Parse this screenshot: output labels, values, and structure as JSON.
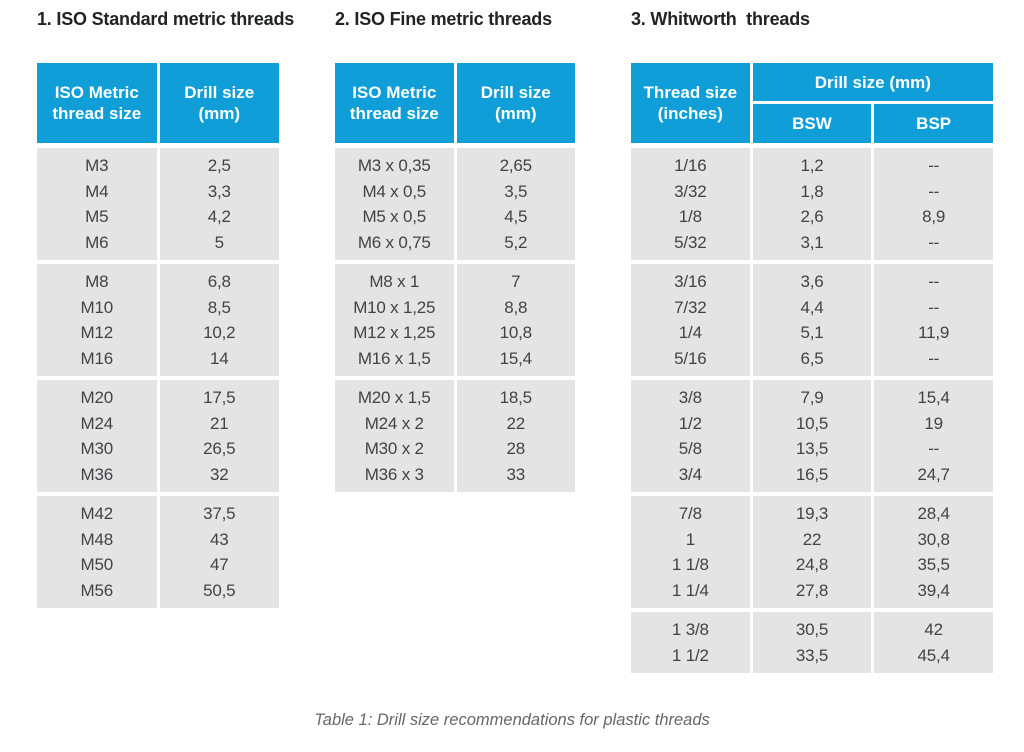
{
  "caption": "Table 1: Drill size recommendations for plastic threads",
  "colors": {
    "header_blue": "#0f9ed8",
    "body_gray": "#e4e4e4",
    "body_text": "#424345",
    "title_text": "#222324",
    "caption_text": "#64676b"
  },
  "tables": [
    {
      "id": "iso-standard-metric",
      "title": "1. ISO Standard metric threads",
      "header": {
        "columns": [
          {
            "lines": [
              "ISO Metric",
              "thread size"
            ]
          },
          {
            "lines": [
              "Drill size",
              "(mm)"
            ]
          }
        ]
      },
      "groups": [
        {
          "rows": [
            [
              "M3",
              "2,5"
            ],
            [
              "M4",
              "3,3"
            ],
            [
              "M5",
              "4,2"
            ],
            [
              "M6",
              "5"
            ]
          ]
        },
        {
          "rows": [
            [
              "M8",
              "6,8"
            ],
            [
              "M10",
              "8,5"
            ],
            [
              "M12",
              "10,2"
            ],
            [
              "M16",
              "14"
            ]
          ]
        },
        {
          "rows": [
            [
              "M20",
              "17,5"
            ],
            [
              "M24",
              "21"
            ],
            [
              "M30",
              "26,5"
            ],
            [
              "M36",
              "32"
            ]
          ]
        },
        {
          "rows": [
            [
              "M42",
              "37,5"
            ],
            [
              "M48",
              "43"
            ],
            [
              "M50",
              "47"
            ],
            [
              "M56",
              "50,5"
            ]
          ]
        }
      ]
    },
    {
      "id": "iso-fine-metric",
      "title": "2. ISO Fine metric threads",
      "header": {
        "columns": [
          {
            "lines": [
              "ISO Metric",
              "thread size"
            ]
          },
          {
            "lines": [
              "Drill size",
              "(mm)"
            ]
          }
        ]
      },
      "groups": [
        {
          "rows": [
            [
              "M3 x 0,35",
              "2,65"
            ],
            [
              "M4 x 0,5",
              "3,5"
            ],
            [
              "M5 x 0,5",
              "4,5"
            ],
            [
              "M6 x 0,75",
              "5,2"
            ]
          ]
        },
        {
          "rows": [
            [
              "M8 x 1",
              "7"
            ],
            [
              "M10 x 1,25",
              "8,8"
            ],
            [
              "M12 x 1,25",
              "10,8"
            ],
            [
              "M16 x 1,5",
              "15,4"
            ]
          ]
        },
        {
          "rows": [
            [
              "M20 x 1,5",
              "18,5"
            ],
            [
              "M24 x 2",
              "22"
            ],
            [
              "M30 x 2",
              "28"
            ],
            [
              "M36 x 3",
              "33"
            ]
          ]
        }
      ]
    },
    {
      "id": "whitworth",
      "title": "3. Whitworth  threads",
      "header_complex": {
        "rowspan_col": {
          "lines": [
            "Thread size",
            "(inches)"
          ]
        },
        "span_label": "Drill size (mm)",
        "sub_columns": [
          "BSW",
          "BSP"
        ]
      },
      "groups": [
        {
          "rows": [
            [
              "1/16",
              "1,2",
              "--"
            ],
            [
              "3/32",
              "1,8",
              "--"
            ],
            [
              "1/8",
              "2,6",
              "8,9"
            ],
            [
              "5/32",
              "3,1",
              "--"
            ]
          ]
        },
        {
          "rows": [
            [
              "3/16",
              "3,6",
              "--"
            ],
            [
              "7/32",
              "4,4",
              "--"
            ],
            [
              "1/4",
              "5,1",
              "11,9"
            ],
            [
              "5/16",
              "6,5",
              "--"
            ]
          ]
        },
        {
          "rows": [
            [
              "3/8",
              "7,9",
              "15,4"
            ],
            [
              "1/2",
              "10,5",
              "19"
            ],
            [
              "5/8",
              "13,5",
              "--"
            ],
            [
              "3/4",
              "16,5",
              "24,7"
            ]
          ]
        },
        {
          "rows": [
            [
              "7/8",
              "19,3",
              "28,4"
            ],
            [
              "1",
              "22",
              "30,8"
            ],
            [
              "1 1/8",
              "24,8",
              "35,5"
            ],
            [
              "1 1/4",
              "27,8",
              "39,4"
            ]
          ]
        },
        {
          "rows": [
            [
              "1 3/8",
              "30,5",
              "42"
            ],
            [
              "1 1/2",
              "33,5",
              "45,4"
            ]
          ]
        }
      ]
    }
  ]
}
